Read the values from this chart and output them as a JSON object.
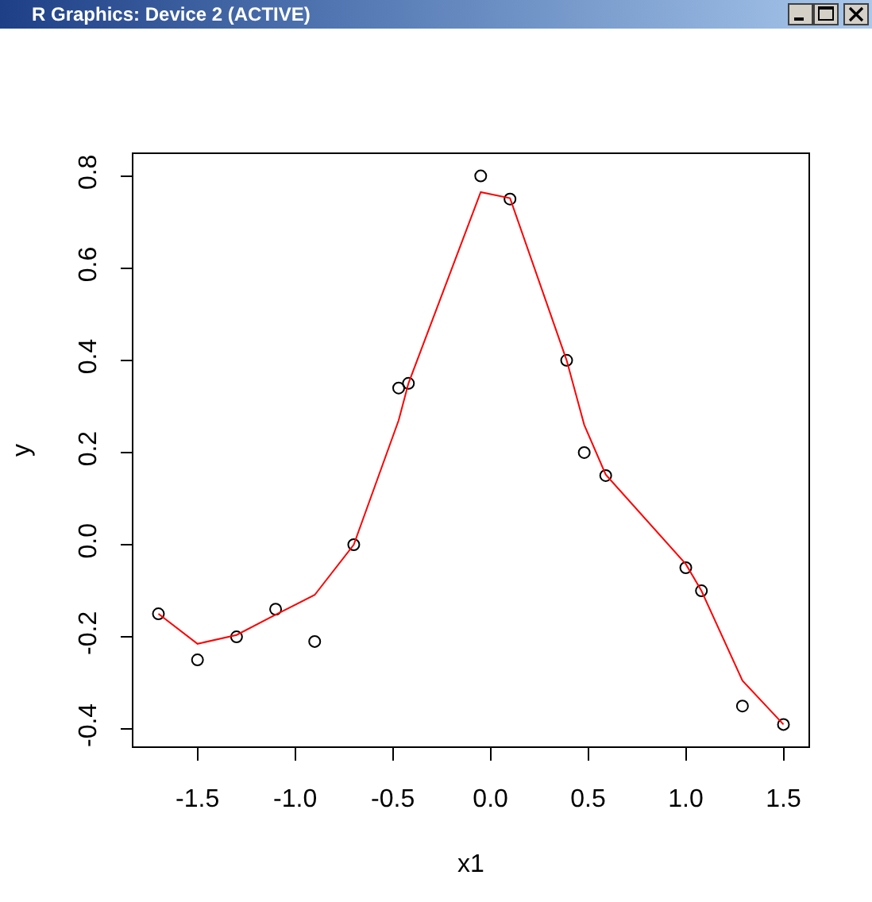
{
  "chart_data": {
    "type": "scatter",
    "title": "R Graphics: Device 2 (ACTIVE)",
    "xlabel": "x1",
    "ylabel": "y",
    "x": [
      -1.7,
      -1.5,
      -1.3,
      -1.1,
      -0.9,
      -0.7,
      -0.47,
      -0.42,
      -0.05,
      0.1,
      0.39,
      0.48,
      0.59,
      1.0,
      1.08,
      1.29,
      1.5
    ],
    "series": [
      {
        "color": "#000000",
        "marker": "circle",
        "values": [
          -0.15,
          -0.25,
          -0.2,
          -0.14,
          -0.21,
          0.0,
          0.34,
          0.35,
          0.8,
          0.75,
          0.4,
          0.2,
          0.15,
          -0.05,
          -0.1,
          -0.35,
          -0.39
        ]
      },
      {
        "type": "line",
        "color": "#ff0000",
        "marker": "none",
        "line_style": "solid",
        "values": [
          -0.15,
          -0.215,
          -0.196,
          -0.152,
          -0.109,
          0.0,
          0.27,
          0.35,
          0.765,
          0.752,
          0.4,
          0.26,
          0.152,
          -0.042,
          -0.1,
          -0.295,
          -0.39
        ]
      }
    ],
    "xlim": [
      -1.828,
      1.628
    ],
    "ylim": [
      -0.4376,
      0.8476
    ],
    "xticks": [
      -1.5,
      {
        "value": -1,
        "label": "-1.0"
      },
      -0.5,
      {
        "value": 0,
        "label": "0.0"
      },
      0.5,
      {
        "value": 1,
        "label": "1.0"
      },
      1.5
    ],
    "yticks": [
      -0.4,
      -0.2,
      {
        "value": 0,
        "label": "0.0"
      },
      0.2,
      0.4,
      0.6,
      0.8
    ]
  }
}
